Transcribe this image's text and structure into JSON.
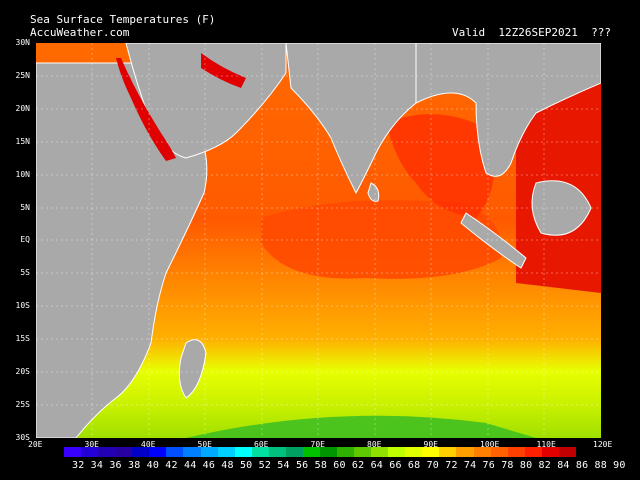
{
  "title": "Sea Surface Temperatures (F)",
  "source": "AccuWeather.com",
  "valid_label": "Valid",
  "valid_time": "12Z26SEP2021",
  "valid_suffix": "???",
  "lat_labels": [
    "30N",
    "25N",
    "20N",
    "15N",
    "10N",
    "5N",
    "EQ",
    "5S",
    "10S",
    "15S",
    "20S",
    "25S",
    "30S"
  ],
  "lon_labels": [
    "20E",
    "30E",
    "40E",
    "50E",
    "60E",
    "70E",
    "80E",
    "90E",
    "100E",
    "110E",
    "120E"
  ],
  "legend": {
    "values": [
      "32",
      "34",
      "36",
      "38",
      "40",
      "42",
      "44",
      "46",
      "48",
      "50",
      "52",
      "54",
      "56",
      "58",
      "60",
      "62",
      "64",
      "66",
      "68",
      "70",
      "72",
      "74",
      "76",
      "78",
      "80",
      "82",
      "84",
      "86",
      "88",
      "90"
    ],
    "colors": [
      "#3a00ff",
      "#2400d8",
      "#2400b4",
      "#2600a0",
      "#0000c8",
      "#0000ff",
      "#0050ff",
      "#0080ff",
      "#00a8ff",
      "#00d0ff",
      "#00ffff",
      "#00e0a0",
      "#00c080",
      "#00a060",
      "#00c000",
      "#009600",
      "#30b000",
      "#60c800",
      "#90e000",
      "#c0ff00",
      "#e0ff00",
      "#ffff00",
      "#ffd000",
      "#ffa000",
      "#ff8000",
      "#ff6000",
      "#ff4000",
      "#ff2000",
      "#e00000",
      "#c00000"
    ]
  },
  "colors": {
    "land": "#a9a9a9",
    "warm": "#ff6a00",
    "hot": "#e00000",
    "mild": "#ffa000",
    "cool": "#e8ff00",
    "green": "#40c020"
  }
}
